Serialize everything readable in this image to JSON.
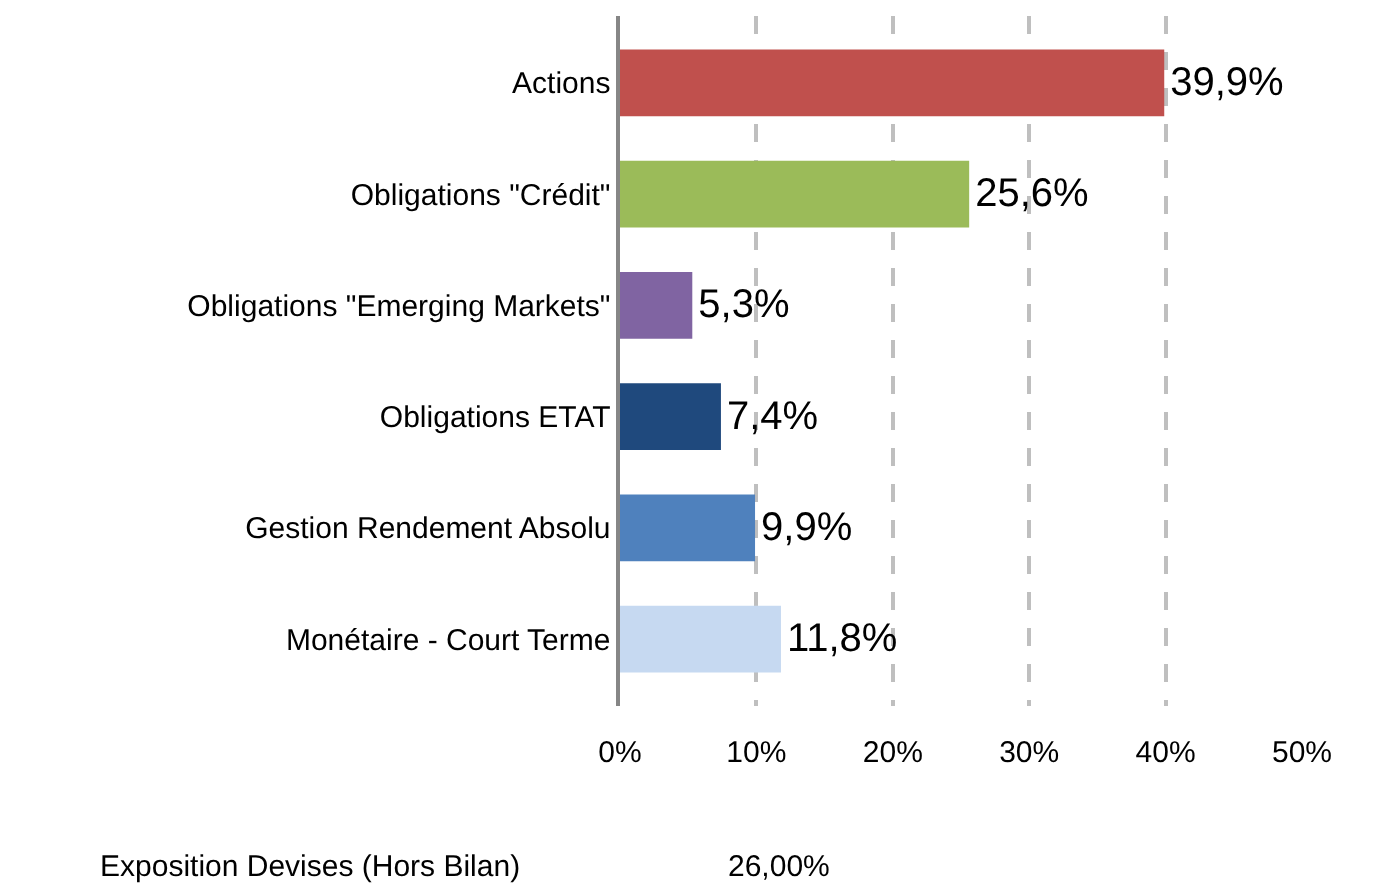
{
  "chart_data": {
    "type": "bar",
    "orientation": "horizontal",
    "categories": [
      "Actions",
      "Obligations \"Crédit\"",
      "Obligations \"Emerging Markets\"",
      "Obligations ETAT",
      "Gestion Rendement Absolu",
      "Monétaire - Court Terme"
    ],
    "values": [
      39.9,
      25.6,
      5.3,
      7.4,
      9.9,
      11.8
    ],
    "colors": [
      "#c0504d",
      "#9bbb59",
      "#8064a2",
      "#1f497d",
      "#4f81bd",
      "#c6d9f1"
    ],
    "value_labels": [
      "39,9%",
      "25,6%",
      "5,3%",
      "7,4%",
      "9,9%",
      "11,8%"
    ],
    "xlim": [
      0,
      50
    ],
    "xticks": [
      {
        "value": 0,
        "label": "0%"
      },
      {
        "value": 10,
        "label": "10%"
      },
      {
        "value": 20,
        "label": "20%"
      },
      {
        "value": 30,
        "label": "30%"
      },
      {
        "value": 40,
        "label": "40%"
      },
      {
        "value": 50,
        "label": "50%"
      }
    ],
    "grid": "x",
    "legend": false,
    "annotations": [
      "Exposition Devises (Hors Bilan)",
      "26,00%"
    ]
  }
}
